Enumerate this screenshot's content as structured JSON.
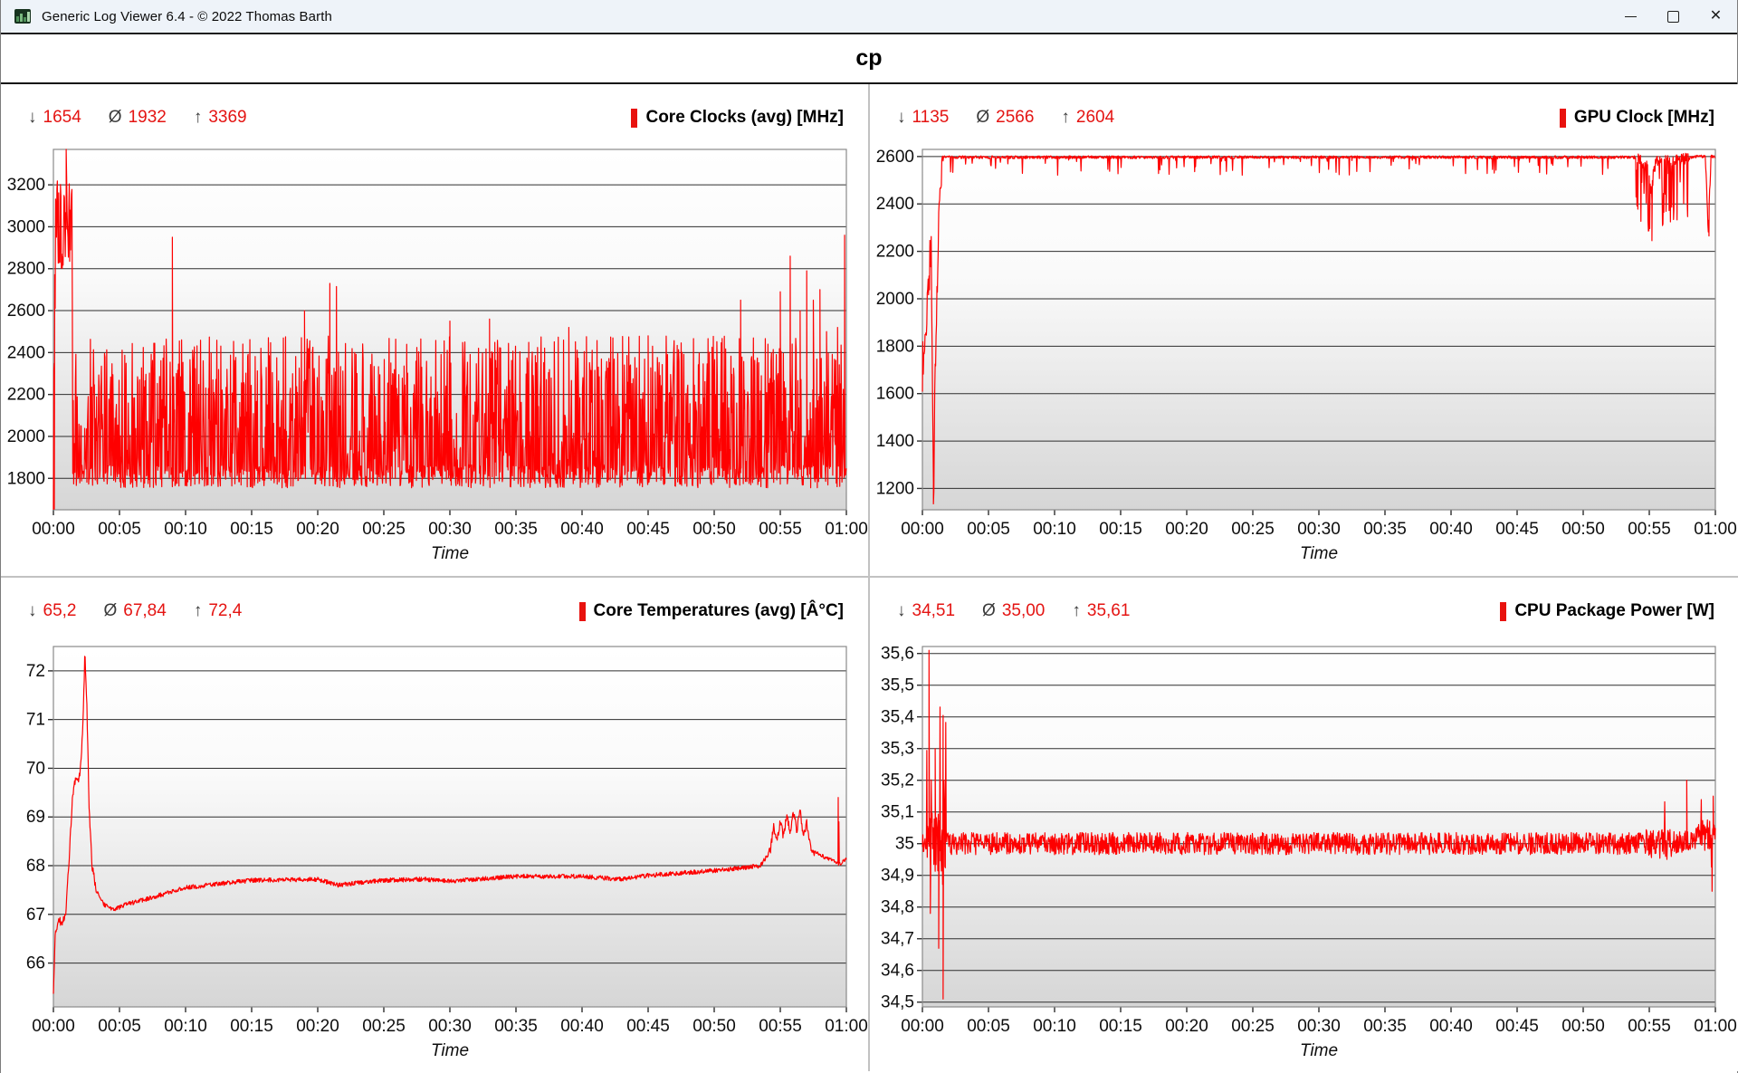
{
  "window": {
    "title": "Generic Log Viewer 6.4 - © 2022 Thomas Barth",
    "header": "cp"
  },
  "glyphs": {
    "down": "↓",
    "avg": "Ø",
    "up": "↑",
    "close": "✕"
  },
  "colors": {
    "line": "#fe0000",
    "stat_value": "#e41412",
    "legend_marker": "#e8120e",
    "titlebar_bg": "#eef3f9",
    "gridline": "#2e2e2e",
    "plot_border": "#8a8a8a"
  },
  "time_axis": {
    "label": "Time",
    "labels": [
      "00:00",
      "00:05",
      "00:10",
      "00:15",
      "00:20",
      "00:25",
      "00:30",
      "00:35",
      "00:40",
      "00:45",
      "00:50",
      "00:55",
      "01:00"
    ],
    "seconds_per_tick": 300,
    "range_seconds": [
      0,
      3600
    ]
  },
  "chart_data": [
    {
      "type": "line",
      "title": "Core Clocks (avg) [MHz]",
      "xlabel": "Time",
      "stats": {
        "min": "1654",
        "avg": "1932",
        "max": "3369"
      },
      "ylim": [
        1650,
        3369
      ],
      "yticks": [
        {
          "v": 3200,
          "label": "3200"
        },
        {
          "v": 3000,
          "label": "3000"
        },
        {
          "v": 2800,
          "label": "2800"
        },
        {
          "v": 2600,
          "label": "2600"
        },
        {
          "v": 2400,
          "label": "2400"
        },
        {
          "v": 2200,
          "label": "2200"
        },
        {
          "v": 2000,
          "label": "2000"
        },
        {
          "v": 1800,
          "label": "1800"
        }
      ],
      "gen": {
        "seed": 101,
        "dt": 2,
        "noise": 55,
        "anchors": [
          [
            0,
            1700
          ],
          [
            6,
            2600
          ],
          [
            12,
            3050
          ],
          [
            85,
            3000
          ],
          [
            88,
            1810
          ],
          [
            3600,
            1810
          ]
        ],
        "zones": [
          {
            "t0": 0,
            "t1": 12,
            "noise": 600
          },
          {
            "t0": 12,
            "t1": 85,
            "noise": 230,
            "spike_p": 0.12,
            "spike_lo": 2700,
            "spike_hi": 3350
          },
          {
            "t0": 88,
            "t1": 3600,
            "noise": 55,
            "spike_p": 0.52,
            "spike_lo": 1860,
            "spike_hi": 2480
          }
        ],
        "forced": [
          [
            4,
            1654
          ],
          [
            58,
            3369
          ],
          [
            540,
            2950
          ],
          [
            558,
            2300
          ],
          [
            1140,
            2600
          ],
          [
            1255,
            2730
          ],
          [
            1285,
            2715
          ],
          [
            1800,
            2550
          ],
          [
            1980,
            2560
          ],
          [
            2340,
            2520
          ],
          [
            2700,
            2480
          ],
          [
            3120,
            2650
          ],
          [
            3300,
            2690
          ],
          [
            3345,
            2860
          ],
          [
            3390,
            2600
          ],
          [
            3420,
            2790
          ],
          [
            3450,
            2650
          ],
          [
            3480,
            2700
          ],
          [
            3510,
            2500
          ],
          [
            3560,
            2520
          ],
          [
            3592,
            2960
          ]
        ]
      }
    },
    {
      "type": "line",
      "title": "GPU Clock [MHz]",
      "xlabel": "Time",
      "stats": {
        "min": "1135",
        "avg": "2566",
        "max": "2604"
      },
      "ylim": [
        1110,
        2630
      ],
      "yticks": [
        {
          "v": 2600,
          "label": "2600"
        },
        {
          "v": 2400,
          "label": "2400"
        },
        {
          "v": 2200,
          "label": "2200"
        },
        {
          "v": 2000,
          "label": "2000"
        },
        {
          "v": 1800,
          "label": "1800"
        },
        {
          "v": 1600,
          "label": "1600"
        },
        {
          "v": 1400,
          "label": "1400"
        },
        {
          "v": 1200,
          "label": "1200"
        }
      ],
      "gen": {
        "seed": 202,
        "dt": 2,
        "noise": 6,
        "anchors": [
          [
            0,
            1690
          ],
          [
            40,
            2230
          ],
          [
            48,
            1400
          ],
          [
            52,
            1140
          ],
          [
            56,
            1600
          ],
          [
            75,
            2350
          ],
          [
            90,
            2597
          ],
          [
            3240,
            2597
          ],
          [
            3290,
            2560
          ],
          [
            3310,
            2480
          ],
          [
            3330,
            2580
          ],
          [
            3480,
            2590
          ],
          [
            3500,
            2600
          ],
          [
            3555,
            2600
          ],
          [
            3568,
            2280
          ],
          [
            3580,
            2600
          ],
          [
            3600,
            2600
          ]
        ],
        "zones": [
          {
            "t0": 0,
            "t1": 40,
            "noise": 110
          },
          {
            "t0": 40,
            "t1": 56,
            "noise": 60
          },
          {
            "t0": 56,
            "t1": 90,
            "noise": 60
          },
          {
            "t0": 90,
            "t1": 3240,
            "noise": 6,
            "spike_p": 0.05,
            "spike_lo": 2520,
            "spike_hi": 2585
          },
          {
            "t0": 3240,
            "t1": 3480,
            "noise": 25,
            "spike_p": 0.28,
            "spike_lo": 2280,
            "spike_hi": 2550
          },
          {
            "t0": 3555,
            "t1": 3580,
            "noise": 25
          }
        ],
        "forced": [
          [
            50,
            1135
          ],
          [
            3312,
            2245
          ],
          [
            3571,
            2265
          ]
        ]
      }
    },
    {
      "type": "line",
      "title": "Core Temperatures (avg) [Â°C]",
      "xlabel": "Time",
      "stats": {
        "min": "65,2",
        "avg": "67,84",
        "max": "72,4"
      },
      "ylim": [
        65.1,
        72.5
      ],
      "yticks": [
        {
          "v": 72,
          "label": "72"
        },
        {
          "v": 71,
          "label": "71"
        },
        {
          "v": 70,
          "label": "70"
        },
        {
          "v": 69,
          "label": "69"
        },
        {
          "v": 68,
          "label": "68"
        },
        {
          "v": 67,
          "label": "67"
        },
        {
          "v": 66,
          "label": "66"
        }
      ],
      "gen": {
        "seed": 303,
        "dt": 2,
        "noise": 0.045,
        "anchors": [
          [
            0,
            65.3
          ],
          [
            8,
            66.6
          ],
          [
            25,
            66.9
          ],
          [
            40,
            66.8
          ],
          [
            55,
            67.0
          ],
          [
            70,
            68.0
          ],
          [
            85,
            69.3
          ],
          [
            100,
            69.8
          ],
          [
            115,
            69.7
          ],
          [
            125,
            70.1
          ],
          [
            135,
            71.0
          ],
          [
            143,
            72.4
          ],
          [
            152,
            71.3
          ],
          [
            162,
            69.2
          ],
          [
            175,
            68.0
          ],
          [
            195,
            67.5
          ],
          [
            230,
            67.2
          ],
          [
            270,
            67.1
          ],
          [
            330,
            67.2
          ],
          [
            450,
            67.35
          ],
          [
            600,
            67.55
          ],
          [
            900,
            67.7
          ],
          [
            1200,
            67.72
          ],
          [
            1290,
            67.6
          ],
          [
            1380,
            67.65
          ],
          [
            1500,
            67.7
          ],
          [
            1680,
            67.72
          ],
          [
            1800,
            67.68
          ],
          [
            2100,
            67.78
          ],
          [
            2400,
            67.78
          ],
          [
            2580,
            67.72
          ],
          [
            2700,
            67.8
          ],
          [
            2850,
            67.85
          ],
          [
            3000,
            67.9
          ],
          [
            3120,
            67.95
          ],
          [
            3210,
            68.0
          ],
          [
            3255,
            68.3
          ],
          [
            3270,
            68.8
          ],
          [
            3285,
            68.55
          ],
          [
            3300,
            68.9
          ],
          [
            3315,
            68.6
          ],
          [
            3330,
            69.05
          ],
          [
            3345,
            68.65
          ],
          [
            3360,
            69.1
          ],
          [
            3375,
            68.7
          ],
          [
            3390,
            69.15
          ],
          [
            3405,
            68.6
          ],
          [
            3420,
            68.9
          ],
          [
            3435,
            68.4
          ],
          [
            3450,
            68.3
          ],
          [
            3480,
            68.25
          ],
          [
            3510,
            68.15
          ],
          [
            3540,
            68.1
          ],
          [
            3555,
            68.05
          ],
          [
            3572,
            68.05
          ],
          [
            3600,
            68.15
          ]
        ],
        "zones": [
          {
            "t0": 0,
            "t1": 200,
            "noise": 0.08
          },
          {
            "t0": 3250,
            "t1": 3460,
            "noise": 0.09
          }
        ],
        "forced": [
          [
            3563,
            69.4
          ],
          [
            3566,
            68.9
          ]
        ]
      }
    },
    {
      "type": "line",
      "title": "CPU Package Power [W]",
      "xlabel": "Time",
      "stats": {
        "min": "34,51",
        "avg": "35,00",
        "max": "35,61"
      },
      "ylim": [
        34.485,
        35.622
      ],
      "yticks": [
        {
          "v": 35.6,
          "label": "35,6"
        },
        {
          "v": 35.5,
          "label": "35,5"
        },
        {
          "v": 35.4,
          "label": "35,4"
        },
        {
          "v": 35.3,
          "label": "35,3"
        },
        {
          "v": 35.2,
          "label": "35,2"
        },
        {
          "v": 35.1,
          "label": "35,1"
        },
        {
          "v": 35.0,
          "label": "35"
        },
        {
          "v": 34.9,
          "label": "34,9"
        },
        {
          "v": 34.8,
          "label": "34,8"
        },
        {
          "v": 34.7,
          "label": "34,7"
        },
        {
          "v": 34.6,
          "label": "34,6"
        },
        {
          "v": 34.5,
          "label": "34,5"
        }
      ],
      "gen": {
        "seed": 404,
        "dt": 2,
        "noise": 0.035,
        "anchors": [
          [
            0,
            35.0
          ],
          [
            3420,
            35.0
          ],
          [
            3520,
            35.02
          ],
          [
            3600,
            35.03
          ]
        ],
        "zones": [
          {
            "t0": 20,
            "t1": 110,
            "noise": 0.1,
            "spike_p": 0.3,
            "spike_lo": 34.6,
            "spike_hi": 35.45
          },
          {
            "t0": 3280,
            "t1": 3420,
            "noise": 0.05,
            "spike_p": 0.05,
            "spike_lo": 34.85,
            "spike_hi": 35.18
          },
          {
            "t0": 3520,
            "t1": 3600,
            "noise": 0.05,
            "spike_p": 0.1,
            "spike_lo": 34.88,
            "spike_hi": 35.17
          }
        ],
        "forced": [
          [
            30,
            35.61
          ],
          [
            36,
            34.78
          ],
          [
            58,
            35.3
          ],
          [
            74,
            34.67
          ],
          [
            94,
            34.51
          ],
          [
            98,
            35.2
          ],
          [
            3470,
            35.2
          ],
          [
            3585,
            34.85
          ],
          [
            3590,
            35.15
          ]
        ]
      }
    }
  ]
}
